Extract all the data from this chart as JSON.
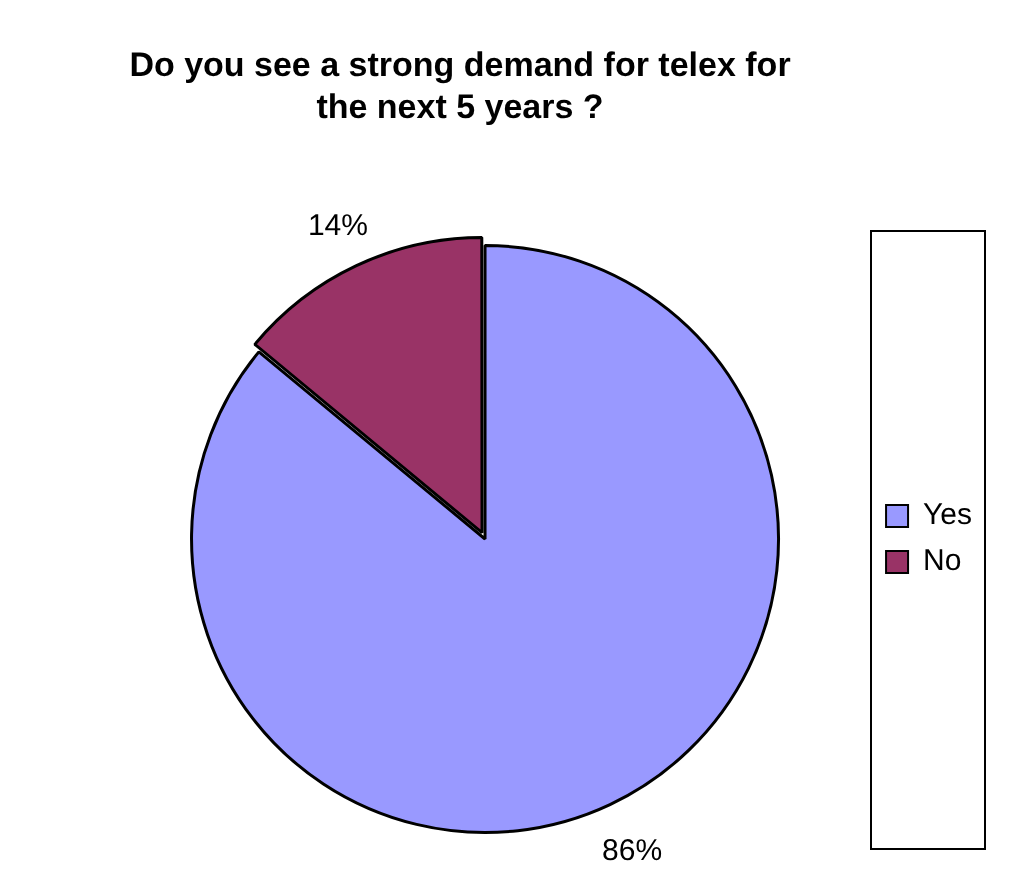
{
  "chart_data": {
    "type": "pie",
    "title": "Do you see a strong demand for telex for the next 5 years ?",
    "categories": [
      "Yes",
      "No"
    ],
    "values": [
      86,
      14
    ],
    "colors": [
      "#9999ff",
      "#993366"
    ],
    "value_labels": [
      "86%",
      "14%"
    ],
    "legend": "right"
  }
}
